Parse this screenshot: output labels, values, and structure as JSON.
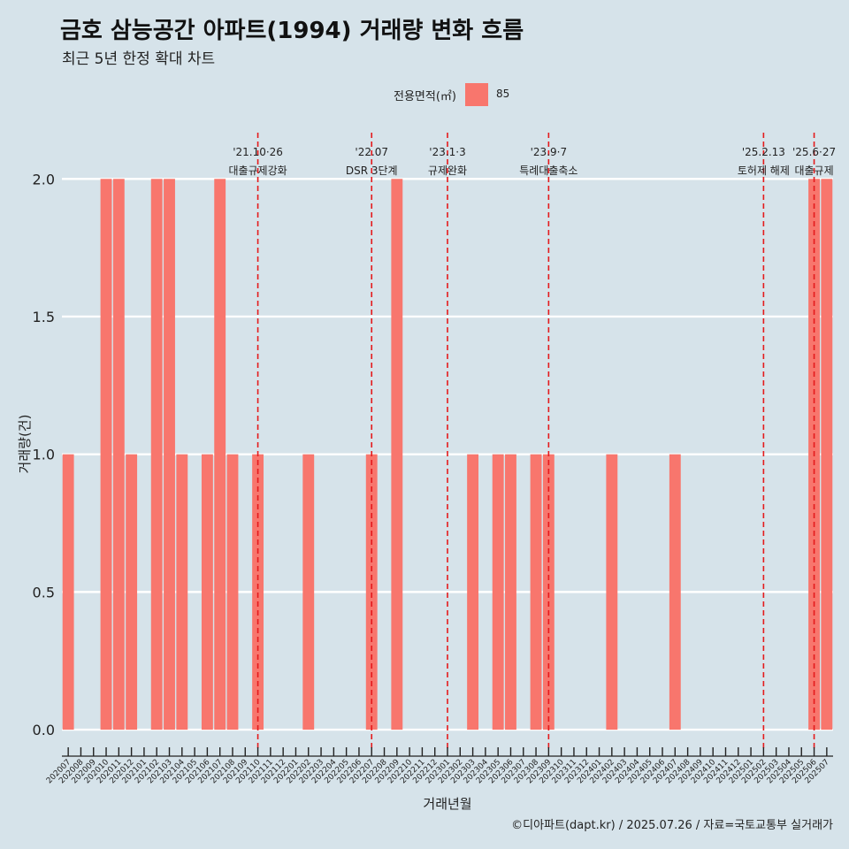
{
  "title": "금호 삼능공간 아파트(1994) 거래량 변화 흐름",
  "subtitle": "최근 5년 한정 확대 차트",
  "caption": "©디아파트(dapt.kr) / 2025.07.26 / 자료=국토교통부 실거래가",
  "colors": {
    "background": "#d6e3ea",
    "bar": "#f8766d",
    "event_line": "#e41a1c",
    "grid": "#ffffff"
  },
  "legend": {
    "title": "전용면적(㎡)",
    "label": "85"
  },
  "chart_data": {
    "type": "bar",
    "xlabel": "거래년월",
    "ylabel": "거래량(건)",
    "ylim": [
      -0.08,
      2.2
    ],
    "yticks": [
      0.0,
      0.5,
      1.0,
      1.5,
      2.0
    ],
    "ytick_labels": [
      "0.0",
      "0.5",
      "1.0",
      "1.5",
      "2.0"
    ],
    "grid": true,
    "legend_position": "top",
    "categories": [
      "202007",
      "202008",
      "202009",
      "202010",
      "202011",
      "202012",
      "202101",
      "202102",
      "202103",
      "202104",
      "202105",
      "202106",
      "202107",
      "202108",
      "202109",
      "202110",
      "202111",
      "202112",
      "202201",
      "202202",
      "202203",
      "202204",
      "202205",
      "202206",
      "202207",
      "202208",
      "202209",
      "202210",
      "202211",
      "202212",
      "202301",
      "202302",
      "202303",
      "202304",
      "202305",
      "202306",
      "202307",
      "202308",
      "202309",
      "202310",
      "202311",
      "202312",
      "202401",
      "202402",
      "202403",
      "202404",
      "202405",
      "202406",
      "202407",
      "202408",
      "202409",
      "202410",
      "202411",
      "202412",
      "202501",
      "202502",
      "202503",
      "202504",
      "202505",
      "202506",
      "202507"
    ],
    "series": [
      {
        "name": "85",
        "values": [
          1,
          0,
          0,
          2,
          2,
          1,
          0,
          2,
          2,
          1,
          0,
          1,
          2,
          1,
          0,
          1,
          0,
          0,
          0,
          1,
          0,
          0,
          0,
          0,
          1,
          0,
          2,
          0,
          0,
          0,
          0,
          0,
          1,
          0,
          1,
          1,
          0,
          1,
          1,
          0,
          0,
          0,
          0,
          1,
          0,
          0,
          0,
          0,
          1,
          0,
          0,
          0,
          0,
          0,
          0,
          0,
          0,
          0,
          0,
          2,
          2
        ]
      }
    ],
    "events": [
      {
        "date": "'21.10·26",
        "label": "대출규제강화",
        "at": "202110"
      },
      {
        "date": "'22.07",
        "label": "DSR 3단계",
        "at": "202207"
      },
      {
        "date": "'23.1·3",
        "label": "규제완화",
        "at": "202301"
      },
      {
        "date": "'23.9·7",
        "label": "특례대출축소",
        "at": "202309"
      },
      {
        "date": "'25.2.13",
        "label": "토허제 해제",
        "at": "202502"
      },
      {
        "date": "'25.6·27",
        "label": "대출규제",
        "at": "202506"
      }
    ]
  }
}
